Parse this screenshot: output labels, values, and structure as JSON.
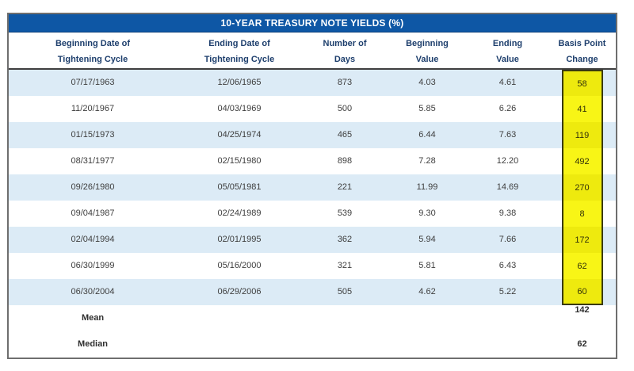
{
  "table": {
    "title": "10-YEAR TREASURY NOTE YIELDS (%)",
    "columns": [
      {
        "line1": "Beginning Date of",
        "line2": "Tightening Cycle"
      },
      {
        "line1": "Ending Date of",
        "line2": "Tightening Cycle"
      },
      {
        "line1": "Number of",
        "line2": "Days"
      },
      {
        "line1": "Beginning",
        "line2": "Value"
      },
      {
        "line1": "Ending",
        "line2": "Value"
      },
      {
        "line1": "Basis Point",
        "line2": "Change"
      }
    ],
    "rows": [
      {
        "beginning_date": "07/17/1963",
        "ending_date": "12/06/1965",
        "days": "873",
        "beginning_value": "4.03",
        "ending_value": "4.61",
        "basis_point_change": "58"
      },
      {
        "beginning_date": "11/20/1967",
        "ending_date": "04/03/1969",
        "days": "500",
        "beginning_value": "5.85",
        "ending_value": "6.26",
        "basis_point_change": "41"
      },
      {
        "beginning_date": "01/15/1973",
        "ending_date": "04/25/1974",
        "days": "465",
        "beginning_value": "6.44",
        "ending_value": "7.63",
        "basis_point_change": "119"
      },
      {
        "beginning_date": "08/31/1977",
        "ending_date": "02/15/1980",
        "days": "898",
        "beginning_value": "7.28",
        "ending_value": "12.20",
        "basis_point_change": "492"
      },
      {
        "beginning_date": "09/26/1980",
        "ending_date": "05/05/1981",
        "days": "221",
        "beginning_value": "11.99",
        "ending_value": "14.69",
        "basis_point_change": "270"
      },
      {
        "beginning_date": "09/04/1987",
        "ending_date": "02/24/1989",
        "days": "539",
        "beginning_value": "9.30",
        "ending_value": "9.38",
        "basis_point_change": "8"
      },
      {
        "beginning_date": "02/04/1994",
        "ending_date": "02/01/1995",
        "days": "362",
        "beginning_value": "5.94",
        "ending_value": "7.66",
        "basis_point_change": "172"
      },
      {
        "beginning_date": "06/30/1999",
        "ending_date": "05/16/2000",
        "days": "321",
        "beginning_value": "5.81",
        "ending_value": "6.43",
        "basis_point_change": "62"
      },
      {
        "beginning_date": "06/30/2004",
        "ending_date": "06/29/2006",
        "days": "505",
        "beginning_value": "4.62",
        "ending_value": "5.22",
        "basis_point_change": "60"
      }
    ],
    "summary": {
      "mean_label": "Mean",
      "mean_value": "142",
      "median_label": "Median",
      "median_value": "62"
    }
  },
  "chart_data": {
    "type": "table",
    "title": "10-YEAR TREASURY NOTE YIELDS (%)",
    "columns": [
      "Beginning Date of Tightening Cycle",
      "Ending Date of Tightening Cycle",
      "Number of Days",
      "Beginning Value",
      "Ending Value",
      "Basis Point Change"
    ],
    "rows": [
      [
        "07/17/1963",
        "12/06/1965",
        873,
        4.03,
        4.61,
        58
      ],
      [
        "11/20/1967",
        "04/03/1969",
        500,
        5.85,
        6.26,
        41
      ],
      [
        "01/15/1973",
        "04/25/1974",
        465,
        6.44,
        7.63,
        119
      ],
      [
        "08/31/1977",
        "02/15/1980",
        898,
        7.28,
        12.2,
        492
      ],
      [
        "09/26/1980",
        "05/05/1981",
        221,
        11.99,
        14.69,
        270
      ],
      [
        "09/04/1987",
        "02/24/1989",
        539,
        9.3,
        9.38,
        8
      ],
      [
        "02/04/1994",
        "02/01/1995",
        362,
        5.94,
        7.66,
        172
      ],
      [
        "06/30/1999",
        "05/16/2000",
        321,
        5.81,
        6.43,
        62
      ],
      [
        "06/30/2004",
        "06/29/2006",
        505,
        4.62,
        5.22,
        60
      ]
    ],
    "mean_basis_point_change": 142,
    "median_basis_point_change": 62,
    "highlighted_column": "Basis Point Change"
  },
  "colors": {
    "title_bar_blue": "#0e57a5",
    "title_text": "#ffffff",
    "header_text_navy": "#1e3f6d",
    "row_stripe_blue": "#dcebf6",
    "highlight_yellow": "#f8f516",
    "highlight_yellow_on_stripe": "#eeea0e",
    "highlight_border": "#3a3a10",
    "body_text": "#3e3e3e",
    "outer_border": "#6e6e6e"
  }
}
